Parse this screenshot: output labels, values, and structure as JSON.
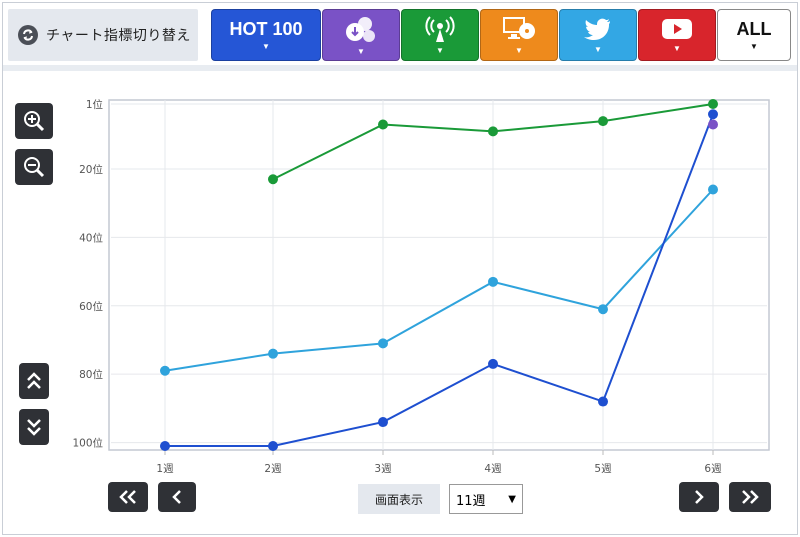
{
  "toolbar": {
    "switch_label": "チャート指標切り替え",
    "tabs": [
      {
        "name": "hot100",
        "label": "HOT 100",
        "color": "#2556d6",
        "icon": "text"
      },
      {
        "name": "download",
        "label": "",
        "color": "#7a52c6",
        "icon": "download-cloud-icon"
      },
      {
        "name": "radio",
        "label": "",
        "color": "#1a9a38",
        "icon": "radio-antenna-icon"
      },
      {
        "name": "pc",
        "label": "",
        "color": "#ee8a1c",
        "icon": "pc-cd-icon"
      },
      {
        "name": "twitter",
        "label": "",
        "color": "#33a7e4",
        "icon": "twitter-bird-icon"
      },
      {
        "name": "youtube",
        "label": "",
        "color": "#d8252c",
        "icon": "youtube-play-icon"
      },
      {
        "name": "all",
        "label": "ALL",
        "color": "#ffffff",
        "icon": "text"
      }
    ],
    "arrow": "▼"
  },
  "controls": {
    "zoom_in": "zoom-in-icon",
    "zoom_out": "zoom-out-icon",
    "scroll_up": "double-chevron-up-icon",
    "scroll_down": "double-chevron-down-icon",
    "first": "«",
    "prev": "‹",
    "next": "›",
    "last": "»",
    "screen_label": "画面表示",
    "screen_value": "11週",
    "screen_caret": "▼"
  },
  "chart_data": {
    "type": "line",
    "categories": [
      "1週",
      "2週",
      "3週",
      "4週",
      "5週",
      "6週"
    ],
    "y_tick_labels": [
      "1位",
      "20位",
      "40位",
      "60位",
      "80位",
      "100位"
    ],
    "y_ticks": [
      1,
      20,
      40,
      60,
      80,
      100
    ],
    "ylim": [
      1,
      101
    ],
    "y_inverted": true,
    "grid": true,
    "series": [
      {
        "color": "#1a9a38",
        "values": [
          null,
          23,
          7,
          9,
          6,
          1
        ]
      },
      {
        "color": "#2fa3dc",
        "values": [
          79,
          74,
          71,
          53,
          61,
          26
        ]
      },
      {
        "color": "#1e4fd0",
        "values": [
          101,
          101,
          94,
          77,
          88,
          4
        ]
      },
      {
        "color": "#7a52c6",
        "values": [
          null,
          null,
          null,
          null,
          null,
          7
        ]
      }
    ]
  }
}
